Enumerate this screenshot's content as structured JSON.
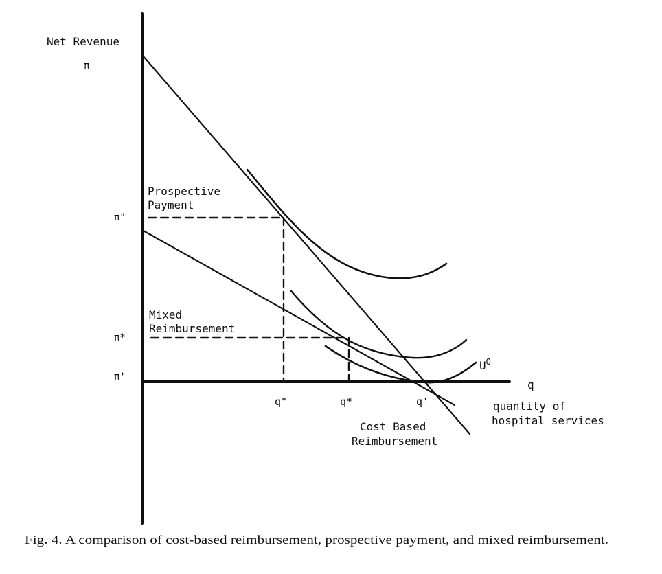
{
  "axes": {
    "y_title": "Net Revenue",
    "y_symbol": "π",
    "x_symbol": "q",
    "x_description": [
      "quantity of",
      "hospital services"
    ]
  },
  "y_levels": {
    "pi_double_prime": "π\"",
    "pi_star": "π*",
    "pi_prime": "π'"
  },
  "x_levels": {
    "q_double_prime": "q\"",
    "q_star": "q*",
    "q_prime": "q'"
  },
  "regimes": {
    "prospective": [
      "Prospective",
      "Payment"
    ],
    "mixed": [
      "Mixed",
      "Reimbursement"
    ],
    "cost_based": [
      "Cost Based",
      "Reimbursement"
    ]
  },
  "indifference_label": "U",
  "indifference_superscript": "O",
  "caption": "Fig. 4. A comparison of cost-based reimbursement, prospective payment, and mixed reimbursement."
}
